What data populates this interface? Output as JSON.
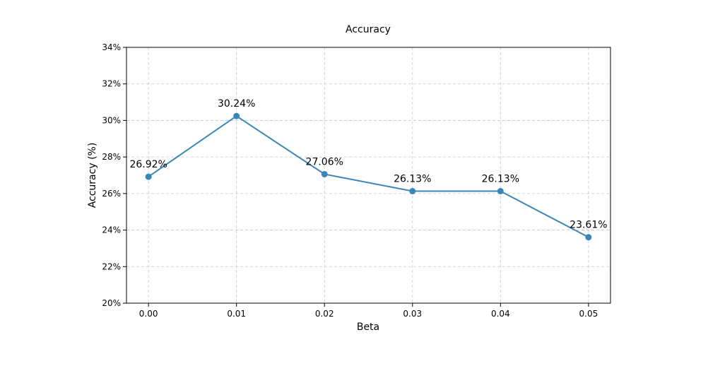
{
  "chart_data": {
    "type": "line",
    "title": "Accuracy",
    "xlabel": "Beta",
    "ylabel": "Accuracy (%)",
    "x": [
      0.0,
      0.01,
      0.02,
      0.03,
      0.04,
      0.05
    ],
    "x_tick_labels": [
      "0.00",
      "0.01",
      "0.02",
      "0.03",
      "0.04",
      "0.05"
    ],
    "series": [
      {
        "values": [
          26.92,
          30.24,
          27.06,
          26.13,
          26.13,
          23.61
        ],
        "data_labels": [
          "26.92%",
          "30.24%",
          "27.06%",
          "26.13%",
          "26.13%",
          "23.61%"
        ],
        "color": "#3a86b8",
        "marker": "circle"
      }
    ],
    "xlim": [
      -0.0025,
      0.0525
    ],
    "ylim": [
      20,
      34
    ],
    "y_ticks": [
      20,
      22,
      24,
      26,
      28,
      30,
      32,
      34
    ],
    "y_tick_labels": [
      "20%",
      "22%",
      "24%",
      "26%",
      "28%",
      "30%",
      "32%",
      "34%"
    ],
    "grid": true,
    "grid_style": "dashed",
    "legend": "none"
  }
}
